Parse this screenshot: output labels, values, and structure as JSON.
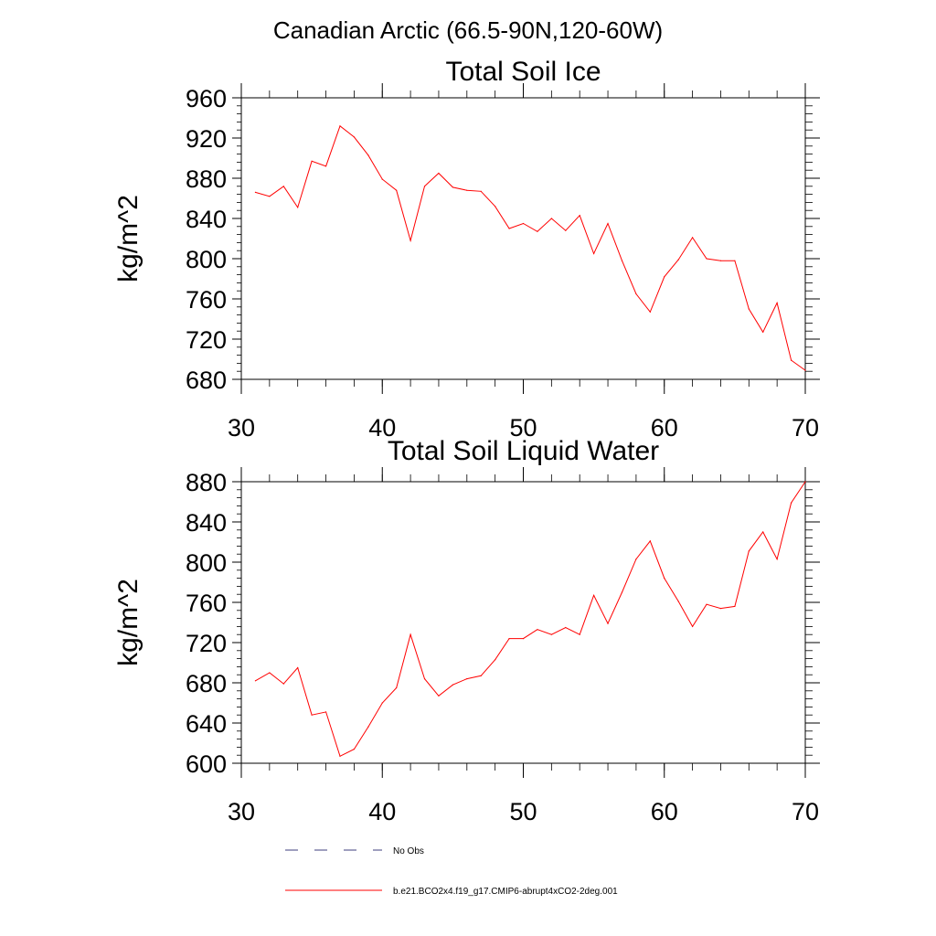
{
  "figure": {
    "suptitle": "Canadian Arctic (66.5-90N,120-60W)"
  },
  "chart_data": [
    {
      "type": "line",
      "title": "Total Soil Ice",
      "xlabel": "",
      "ylabel": "kg/m^2",
      "xlim": [
        30,
        70
      ],
      "ylim": [
        680,
        960
      ],
      "xticks": [
        30,
        40,
        50,
        60,
        70
      ],
      "yticks": [
        680,
        720,
        760,
        800,
        840,
        880,
        920,
        960
      ],
      "grid": false,
      "series": [
        {
          "name": "b.e21.BCO2x4.f19_g17.CMIP6-abrupt4xCO2-2deg.001",
          "color": "#ff0000",
          "x": [
            31,
            32,
            33,
            34,
            35,
            36,
            37,
            38,
            39,
            40,
            41,
            42,
            43,
            44,
            45,
            46,
            47,
            48,
            49,
            50,
            51,
            52,
            53,
            54,
            55,
            56,
            57,
            58,
            59,
            60,
            61,
            62,
            63,
            64,
            65,
            66,
            67,
            68,
            69,
            70
          ],
          "values": [
            866,
            862,
            872,
            851,
            897,
            892,
            932,
            921,
            903,
            879,
            868,
            818,
            872,
            885,
            871,
            868,
            867,
            852,
            830,
            835,
            827,
            840,
            828,
            843,
            805,
            835,
            798,
            765,
            747,
            782,
            799,
            821,
            800,
            798,
            798,
            750,
            727,
            756,
            699,
            689
          ]
        }
      ]
    },
    {
      "type": "line",
      "title": "Total Soil Liquid Water",
      "xlabel": "",
      "ylabel": "kg/m^2",
      "xlim": [
        30,
        70
      ],
      "ylim": [
        600,
        880
      ],
      "xticks": [
        30,
        40,
        50,
        60,
        70
      ],
      "yticks": [
        600,
        640,
        680,
        720,
        760,
        800,
        840,
        880
      ],
      "grid": false,
      "series": [
        {
          "name": "b.e21.BCO2x4.f19_g17.CMIP6-abrupt4xCO2-2deg.001",
          "color": "#ff0000",
          "x": [
            31,
            32,
            33,
            34,
            35,
            36,
            37,
            38,
            39,
            40,
            41,
            42,
            43,
            44,
            45,
            46,
            47,
            48,
            49,
            50,
            51,
            52,
            53,
            54,
            55,
            56,
            57,
            58,
            59,
            60,
            61,
            62,
            63,
            64,
            65,
            66,
            67,
            68,
            69,
            70
          ],
          "values": [
            682,
            690,
            679,
            695,
            648,
            651,
            607,
            614,
            636,
            660,
            675,
            728,
            684,
            667,
            678,
            684,
            687,
            703,
            724,
            724,
            733,
            728,
            735,
            728,
            767,
            739,
            770,
            803,
            821,
            784,
            761,
            736,
            758,
            754,
            756,
            811,
            830,
            803,
            859,
            880
          ]
        }
      ]
    }
  ],
  "legend": {
    "placement": "bottom",
    "items": [
      {
        "label": "No Obs",
        "color": "#3f3f7f",
        "dash": "dashed"
      },
      {
        "label": "b.e21.BCO2x4.f19_g17.CMIP6-abrupt4xCO2-2deg.001",
        "color": "#ff0000",
        "dash": "solid"
      }
    ]
  }
}
